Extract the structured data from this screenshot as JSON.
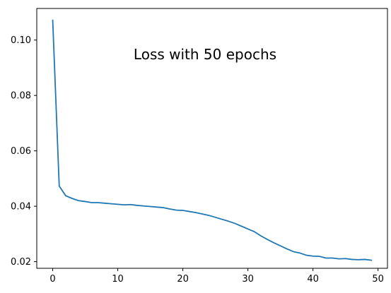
{
  "chart_data": {
    "type": "line",
    "title": "Loss with 50 epochs",
    "xlabel": "",
    "ylabel": "",
    "xlim": [
      -2.45,
      51.45
    ],
    "ylim": [
      0.0176,
      0.1114
    ],
    "x_ticks": [
      0,
      10,
      20,
      30,
      40,
      50
    ],
    "y_ticks": [
      0.02,
      0.04,
      0.06,
      0.08,
      0.1
    ],
    "y_tick_labels": [
      "0.02",
      "0.04",
      "0.06",
      "0.08",
      "0.10"
    ],
    "grid": false,
    "legend": "none",
    "series": [
      {
        "color": "#1f77b4",
        "x": [
          0,
          1,
          2,
          3,
          4,
          5,
          6,
          7,
          8,
          9,
          10,
          11,
          12,
          13,
          14,
          15,
          16,
          17,
          18,
          19,
          20,
          21,
          22,
          23,
          24,
          25,
          26,
          27,
          28,
          29,
          30,
          31,
          32,
          33,
          34,
          35,
          36,
          37,
          38,
          39,
          40,
          41,
          42,
          43,
          44,
          45,
          46,
          47,
          48,
          49
        ],
        "y": [
          0.1072,
          0.0473,
          0.0438,
          0.0428,
          0.042,
          0.0417,
          0.0413,
          0.0413,
          0.0411,
          0.0409,
          0.0407,
          0.0405,
          0.0406,
          0.0403,
          0.0401,
          0.0399,
          0.0397,
          0.0395,
          0.039,
          0.0386,
          0.0385,
          0.0381,
          0.0377,
          0.0372,
          0.0367,
          0.036,
          0.0353,
          0.0346,
          0.0338,
          0.0328,
          0.0318,
          0.0308,
          0.0293,
          0.028,
          0.0268,
          0.0257,
          0.0246,
          0.0236,
          0.0231,
          0.0223,
          0.022,
          0.0219,
          0.0213,
          0.0213,
          0.021,
          0.0211,
          0.0208,
          0.0207,
          0.0208,
          0.0205
        ]
      }
    ]
  }
}
